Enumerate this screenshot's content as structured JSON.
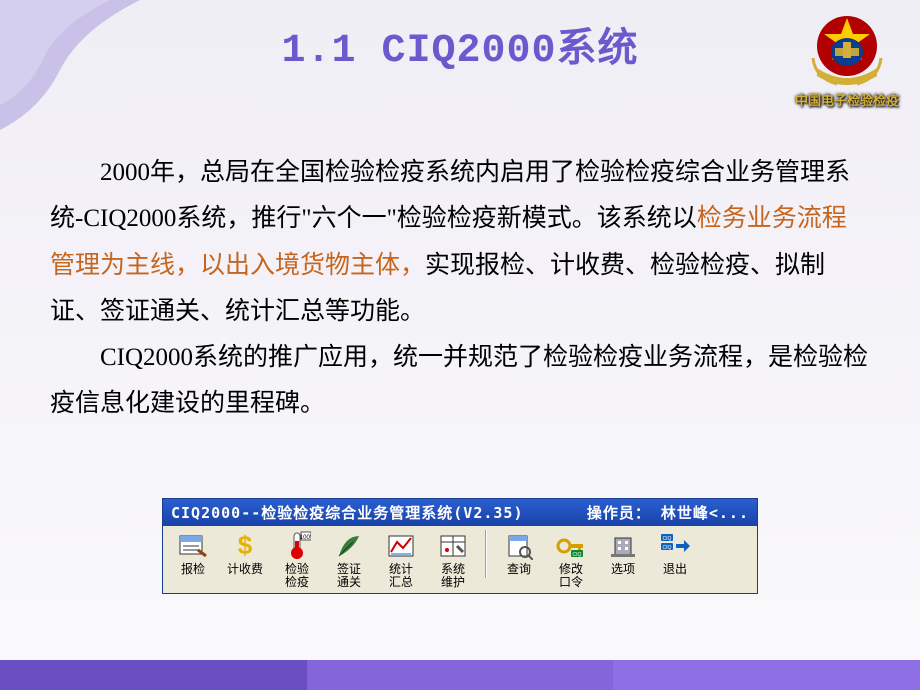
{
  "title": "1.1 CIQ2000系统",
  "emblem_subtitle": "中国电子检验检疫",
  "para1_a": "2000年，总局在全国检验检疫系统内启用了检验检疫综合业务管理系统-CIQ2000系统，推行\"六个一\"检验检疫新模式。该系统以",
  "para1_hl": "检务业务流程管理为主线，以出入境货物主体，",
  "para1_b": "实现报检、计收费、检验检疫、拟制证、签证通关、统计汇总等功能。",
  "para2": "CIQ2000系统的推广应用，统一并规范了检验检疫业务流程，是检验检疫信息化建设的里程碑。",
  "toolbar": {
    "title_left": "CIQ2000--检验检疫综合业务管理系统(V2.35)",
    "title_right": "操作员： 林世峰<...",
    "buttons": [
      {
        "name": "baojian",
        "label": "报检",
        "icon": "form"
      },
      {
        "name": "jishoufei",
        "label": "计收费",
        "icon": "dollar"
      },
      {
        "name": "jianyan",
        "label": "检验\n检疫",
        "icon": "thermo"
      },
      {
        "name": "qianzheng",
        "label": "签证\n通关",
        "icon": "feather"
      },
      {
        "name": "tongji",
        "label": "统计\n汇总",
        "icon": "chart"
      },
      {
        "name": "weihu",
        "label": "系统\n维护",
        "icon": "wrench"
      }
    ],
    "buttons2": [
      {
        "name": "chaxun",
        "label": "查询",
        "icon": "search"
      },
      {
        "name": "xiugai",
        "label": "修改\n口令",
        "icon": "key"
      },
      {
        "name": "xuanxiang",
        "label": "选项",
        "icon": "building"
      },
      {
        "name": "tuichu",
        "label": "退出",
        "icon": "exit"
      }
    ]
  },
  "colors": {
    "title": "#6a5acd",
    "highlight": "#c6651e",
    "titlebar_grad_top": "#2a5fd0",
    "titlebar_grad_bot": "#1842a8",
    "toolbar_bg": "#ece9d8",
    "footer": [
      "#6a4fc2",
      "#8566da",
      "#8f6fe6"
    ]
  }
}
